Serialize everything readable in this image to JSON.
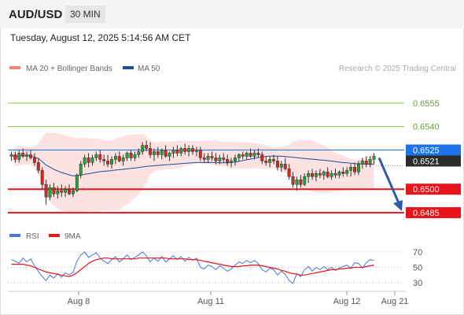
{
  "header": {
    "symbol": "AUD/USD",
    "interval": "30 MIN",
    "timestamp": "Tuesday, August 12, 2025 5:14:56 AM CET"
  },
  "chart_data": [
    {
      "type": "candlestick",
      "panel": "price",
      "legend": [
        {
          "name": "MA 20 + Bollinger Bands",
          "color": "#f4837d"
        },
        {
          "name": "MA 50",
          "color": "#1e4f99"
        }
      ],
      "legend_placement": "top-left",
      "watermark": "Research © 2025 Trading Central",
      "x_tick_labels": [
        "Aug 8",
        "Aug 11",
        "Aug 12",
        "Aug 21"
      ],
      "ylim": [
        0.6479,
        0.6572
      ],
      "levels": [
        {
          "value": 0.6555,
          "label": "0.6555",
          "role": "target",
          "color": "#8dc63f"
        },
        {
          "value": 0.654,
          "label": "0.6540",
          "role": "target",
          "color": "#8dc63f"
        },
        {
          "value": 0.6525,
          "label": "0.6525",
          "role": "pivot",
          "color": "#1e73e8"
        },
        {
          "value": 0.65,
          "label": "0.6500",
          "role": "target",
          "color": "#e8141b"
        },
        {
          "value": 0.6485,
          "label": "0.6485",
          "role": "target",
          "color": "#e8141b"
        }
      ],
      "last_price": {
        "value": 0.6521,
        "label": "0.6521"
      },
      "projection": {
        "from": 0.6521,
        "to": 0.6485,
        "color": "#2a5aa8"
      },
      "bars": [
        {
          "o": 0.6521,
          "h": 0.6524,
          "l": 0.6518,
          "c": 0.6522
        },
        {
          "o": 0.6522,
          "h": 0.6524,
          "l": 0.6517,
          "c": 0.6519
        },
        {
          "o": 0.6519,
          "h": 0.6525,
          "l": 0.6517,
          "c": 0.6523
        },
        {
          "o": 0.6523,
          "h": 0.6526,
          "l": 0.652,
          "c": 0.6521
        },
        {
          "o": 0.6521,
          "h": 0.6524,
          "l": 0.6518,
          "c": 0.6522
        },
        {
          "o": 0.6522,
          "h": 0.6525,
          "l": 0.6519,
          "c": 0.652
        },
        {
          "o": 0.652,
          "h": 0.6523,
          "l": 0.6515,
          "c": 0.6517
        },
        {
          "o": 0.6517,
          "h": 0.652,
          "l": 0.651,
          "c": 0.6512
        },
        {
          "o": 0.6512,
          "h": 0.6514,
          "l": 0.65,
          "c": 0.6503
        },
        {
          "o": 0.6503,
          "h": 0.6506,
          "l": 0.649,
          "c": 0.6495
        },
        {
          "o": 0.6495,
          "h": 0.6503,
          "l": 0.6493,
          "c": 0.6501
        },
        {
          "o": 0.6501,
          "h": 0.6504,
          "l": 0.6495,
          "c": 0.6497
        },
        {
          "o": 0.6497,
          "h": 0.6502,
          "l": 0.6494,
          "c": 0.6499
        },
        {
          "o": 0.6499,
          "h": 0.6503,
          "l": 0.6495,
          "c": 0.6498
        },
        {
          "o": 0.6498,
          "h": 0.6502,
          "l": 0.6495,
          "c": 0.65
        },
        {
          "o": 0.65,
          "h": 0.6503,
          "l": 0.6496,
          "c": 0.6497
        },
        {
          "o": 0.6497,
          "h": 0.6501,
          "l": 0.6495,
          "c": 0.6499
        },
        {
          "o": 0.6499,
          "h": 0.651,
          "l": 0.6498,
          "c": 0.6509
        },
        {
          "o": 0.6509,
          "h": 0.6518,
          "l": 0.6507,
          "c": 0.6516
        },
        {
          "o": 0.6516,
          "h": 0.6522,
          "l": 0.6514,
          "c": 0.652
        },
        {
          "o": 0.652,
          "h": 0.6523,
          "l": 0.6514,
          "c": 0.6517
        },
        {
          "o": 0.6517,
          "h": 0.6522,
          "l": 0.6515,
          "c": 0.652
        },
        {
          "o": 0.652,
          "h": 0.6524,
          "l": 0.6518,
          "c": 0.6522
        },
        {
          "o": 0.6522,
          "h": 0.6525,
          "l": 0.6517,
          "c": 0.6519
        },
        {
          "o": 0.6519,
          "h": 0.6522,
          "l": 0.6515,
          "c": 0.6518
        },
        {
          "o": 0.6518,
          "h": 0.6522,
          "l": 0.6514,
          "c": 0.6516
        },
        {
          "o": 0.6516,
          "h": 0.6521,
          "l": 0.6513,
          "c": 0.6519
        },
        {
          "o": 0.6519,
          "h": 0.6523,
          "l": 0.6516,
          "c": 0.6521
        },
        {
          "o": 0.6521,
          "h": 0.6524,
          "l": 0.6517,
          "c": 0.6518
        },
        {
          "o": 0.6518,
          "h": 0.6522,
          "l": 0.6515,
          "c": 0.652
        },
        {
          "o": 0.652,
          "h": 0.6524,
          "l": 0.6518,
          "c": 0.6523
        },
        {
          "o": 0.6523,
          "h": 0.6525,
          "l": 0.6518,
          "c": 0.652
        },
        {
          "o": 0.652,
          "h": 0.6524,
          "l": 0.6518,
          "c": 0.6522
        },
        {
          "o": 0.6522,
          "h": 0.6526,
          "l": 0.652,
          "c": 0.6524
        },
        {
          "o": 0.6524,
          "h": 0.653,
          "l": 0.6522,
          "c": 0.6528
        },
        {
          "o": 0.6528,
          "h": 0.6531,
          "l": 0.6524,
          "c": 0.6526
        },
        {
          "o": 0.6526,
          "h": 0.653,
          "l": 0.652,
          "c": 0.6522
        },
        {
          "o": 0.6522,
          "h": 0.6526,
          "l": 0.6518,
          "c": 0.6524
        },
        {
          "o": 0.6524,
          "h": 0.6527,
          "l": 0.652,
          "c": 0.6522
        },
        {
          "o": 0.6522,
          "h": 0.6526,
          "l": 0.6519,
          "c": 0.6525
        },
        {
          "o": 0.6525,
          "h": 0.6528,
          "l": 0.652,
          "c": 0.6521
        },
        {
          "o": 0.6521,
          "h": 0.6524,
          "l": 0.6518,
          "c": 0.6523
        },
        {
          "o": 0.6523,
          "h": 0.6527,
          "l": 0.652,
          "c": 0.6525
        },
        {
          "o": 0.6525,
          "h": 0.6528,
          "l": 0.6521,
          "c": 0.6523
        },
        {
          "o": 0.6523,
          "h": 0.6527,
          "l": 0.6521,
          "c": 0.6526
        },
        {
          "o": 0.6526,
          "h": 0.6529,
          "l": 0.6522,
          "c": 0.6524
        },
        {
          "o": 0.6524,
          "h": 0.6528,
          "l": 0.6521,
          "c": 0.6526
        },
        {
          "o": 0.6526,
          "h": 0.6528,
          "l": 0.6522,
          "c": 0.6524
        },
        {
          "o": 0.6524,
          "h": 0.6527,
          "l": 0.6521,
          "c": 0.6525
        },
        {
          "o": 0.6525,
          "h": 0.6527,
          "l": 0.6518,
          "c": 0.652
        },
        {
          "o": 0.652,
          "h": 0.6523,
          "l": 0.6517,
          "c": 0.6519
        },
        {
          "o": 0.6519,
          "h": 0.6523,
          "l": 0.6517,
          "c": 0.6521
        },
        {
          "o": 0.6521,
          "h": 0.6524,
          "l": 0.6518,
          "c": 0.652
        },
        {
          "o": 0.652,
          "h": 0.6523,
          "l": 0.6516,
          "c": 0.6518
        },
        {
          "o": 0.6518,
          "h": 0.6522,
          "l": 0.6516,
          "c": 0.652
        },
        {
          "o": 0.652,
          "h": 0.6523,
          "l": 0.6517,
          "c": 0.6519
        },
        {
          "o": 0.6519,
          "h": 0.6522,
          "l": 0.6515,
          "c": 0.6517
        },
        {
          "o": 0.6517,
          "h": 0.652,
          "l": 0.6514,
          "c": 0.6518
        },
        {
          "o": 0.6518,
          "h": 0.6522,
          "l": 0.6515,
          "c": 0.652
        },
        {
          "o": 0.652,
          "h": 0.6523,
          "l": 0.6518,
          "c": 0.6522
        },
        {
          "o": 0.6522,
          "h": 0.6524,
          "l": 0.6519,
          "c": 0.6521
        },
        {
          "o": 0.6521,
          "h": 0.6524,
          "l": 0.6519,
          "c": 0.6523
        },
        {
          "o": 0.6523,
          "h": 0.6526,
          "l": 0.652,
          "c": 0.6521
        },
        {
          "o": 0.6521,
          "h": 0.6525,
          "l": 0.6519,
          "c": 0.6523
        },
        {
          "o": 0.6523,
          "h": 0.6526,
          "l": 0.652,
          "c": 0.6522
        },
        {
          "o": 0.6522,
          "h": 0.6524,
          "l": 0.6516,
          "c": 0.6518
        },
        {
          "o": 0.6518,
          "h": 0.6521,
          "l": 0.6515,
          "c": 0.6517
        },
        {
          "o": 0.6517,
          "h": 0.6521,
          "l": 0.6514,
          "c": 0.6519
        },
        {
          "o": 0.6519,
          "h": 0.6522,
          "l": 0.6516,
          "c": 0.6518
        },
        {
          "o": 0.6518,
          "h": 0.6521,
          "l": 0.6512,
          "c": 0.6514
        },
        {
          "o": 0.6514,
          "h": 0.6518,
          "l": 0.6511,
          "c": 0.6516
        },
        {
          "o": 0.6516,
          "h": 0.652,
          "l": 0.6512,
          "c": 0.6513
        },
        {
          "o": 0.6513,
          "h": 0.6516,
          "l": 0.6506,
          "c": 0.6508
        },
        {
          "o": 0.6508,
          "h": 0.6511,
          "l": 0.6501,
          "c": 0.6503
        },
        {
          "o": 0.6503,
          "h": 0.6508,
          "l": 0.6499,
          "c": 0.6506
        },
        {
          "o": 0.6506,
          "h": 0.6509,
          "l": 0.6501,
          "c": 0.6503
        },
        {
          "o": 0.6503,
          "h": 0.651,
          "l": 0.6502,
          "c": 0.6508
        },
        {
          "o": 0.6508,
          "h": 0.6512,
          "l": 0.6504,
          "c": 0.651
        },
        {
          "o": 0.651,
          "h": 0.6513,
          "l": 0.6506,
          "c": 0.6508
        },
        {
          "o": 0.6508,
          "h": 0.6512,
          "l": 0.6505,
          "c": 0.651
        },
        {
          "o": 0.651,
          "h": 0.6513,
          "l": 0.6507,
          "c": 0.6509
        },
        {
          "o": 0.6509,
          "h": 0.6512,
          "l": 0.6506,
          "c": 0.6511
        },
        {
          "o": 0.6511,
          "h": 0.6514,
          "l": 0.6507,
          "c": 0.6508
        },
        {
          "o": 0.6508,
          "h": 0.6512,
          "l": 0.6506,
          "c": 0.651
        },
        {
          "o": 0.651,
          "h": 0.6513,
          "l": 0.6507,
          "c": 0.6509
        },
        {
          "o": 0.6509,
          "h": 0.6512,
          "l": 0.6507,
          "c": 0.6511
        },
        {
          "o": 0.6511,
          "h": 0.6514,
          "l": 0.6508,
          "c": 0.651
        },
        {
          "o": 0.651,
          "h": 0.6514,
          "l": 0.6508,
          "c": 0.6512
        },
        {
          "o": 0.6512,
          "h": 0.6516,
          "l": 0.6508,
          "c": 0.6514
        },
        {
          "o": 0.6514,
          "h": 0.6517,
          "l": 0.6509,
          "c": 0.6511
        },
        {
          "o": 0.6511,
          "h": 0.6518,
          "l": 0.6509,
          "c": 0.6516
        },
        {
          "o": 0.6516,
          "h": 0.652,
          "l": 0.6513,
          "c": 0.6518
        },
        {
          "o": 0.6518,
          "h": 0.6521,
          "l": 0.6514,
          "c": 0.6516
        },
        {
          "o": 0.6516,
          "h": 0.6521,
          "l": 0.6514,
          "c": 0.6519
        },
        {
          "o": 0.6519,
          "h": 0.6523,
          "l": 0.6516,
          "c": 0.6521
        }
      ]
    },
    {
      "type": "line",
      "panel": "oscillator",
      "legend": [
        {
          "name": "RSI",
          "color": "#4a77d6"
        },
        {
          "name": "9MA",
          "color": "#e8141b"
        }
      ],
      "legend_placement": "top-left",
      "y_ticks": [
        70,
        50,
        30
      ],
      "ylim": [
        25,
        75
      ],
      "series": [
        {
          "name": "RSI",
          "values": [
            60,
            58,
            55,
            62,
            57,
            61,
            52,
            45,
            38,
            33,
            40,
            36,
            42,
            37,
            43,
            40,
            44,
            58,
            66,
            70,
            63,
            66,
            69,
            62,
            58,
            55,
            60,
            64,
            57,
            61,
            66,
            60,
            63,
            66,
            70,
            65,
            57,
            62,
            58,
            64,
            57,
            61,
            65,
            60,
            64,
            58,
            63,
            59,
            62,
            50,
            48,
            53,
            51,
            47,
            52,
            49,
            45,
            48,
            53,
            57,
            55,
            59,
            56,
            59,
            55,
            47,
            44,
            49,
            47,
            40,
            45,
            41,
            33,
            29,
            42,
            38,
            47,
            51,
            45,
            50,
            47,
            51,
            47,
            50,
            46,
            49,
            51,
            53,
            49,
            56,
            55,
            49,
            56,
            60,
            59
          ]
        },
        {
          "name": "9MA",
          "values": [
            54,
            54,
            54,
            54,
            53,
            52,
            50,
            48,
            46,
            44,
            43,
            42,
            41,
            40,
            39,
            38,
            40,
            43,
            47,
            51,
            55,
            58,
            60,
            61,
            62,
            62,
            61,
            61,
            61,
            61,
            61,
            61,
            61,
            62,
            62,
            62,
            62,
            62,
            62,
            62,
            62,
            61,
            61,
            61,
            61,
            61,
            60,
            60,
            60,
            59,
            58,
            57,
            56,
            55,
            54,
            53,
            52,
            51,
            51,
            51,
            52,
            52,
            53,
            53,
            53,
            52,
            51,
            50,
            49,
            48,
            46,
            45,
            43,
            42,
            41,
            40,
            40,
            41,
            42,
            43,
            44,
            45,
            46,
            47,
            47,
            48,
            48,
            49,
            49,
            50,
            50,
            50,
            51,
            52,
            53
          ]
        }
      ]
    }
  ]
}
